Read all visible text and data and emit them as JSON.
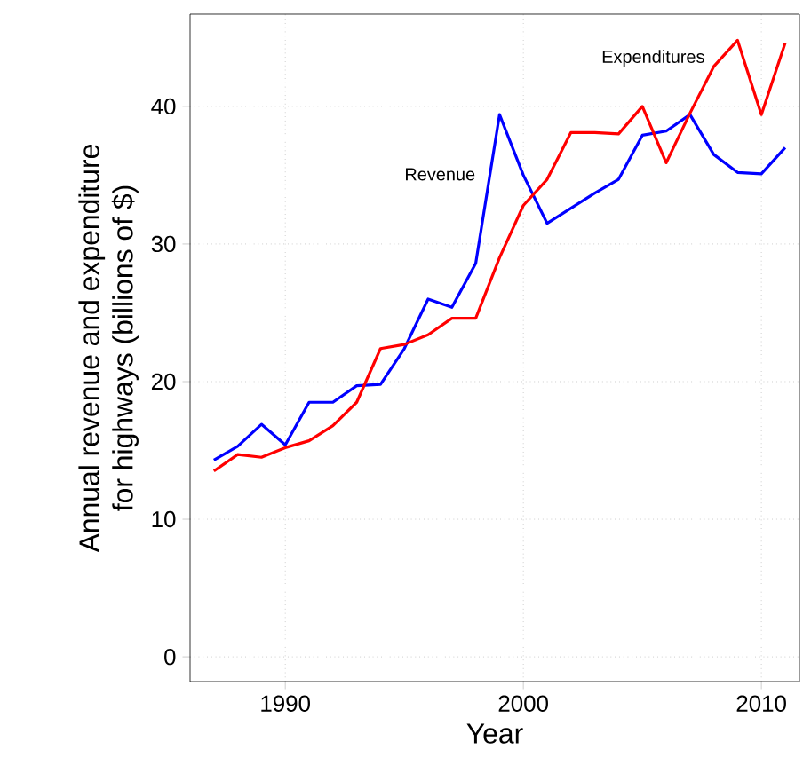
{
  "chart_data": {
    "type": "line",
    "xlabel": "Year",
    "ylabel": "Annual revenue and expenditure\nfor highways (billions of $)",
    "x": [
      1987,
      1988,
      1989,
      1990,
      1991,
      1992,
      1993,
      1994,
      1995,
      1996,
      1997,
      1998,
      1999,
      2000,
      2001,
      2002,
      2003,
      2004,
      2005,
      2006,
      2007,
      2008,
      2009,
      2010,
      2011
    ],
    "series": [
      {
        "name": "Revenue",
        "color": "#0000ff",
        "values": [
          14.3,
          15.3,
          16.9,
          15.4,
          18.5,
          18.5,
          19.7,
          19.8,
          22.4,
          26.0,
          25.4,
          28.6,
          39.4,
          35.0,
          31.5,
          32.6,
          33.7,
          34.7,
          37.9,
          38.2,
          39.4,
          36.5,
          35.2,
          35.1,
          37.0
        ]
      },
      {
        "name": "Expenditures",
        "color": "#ff0000",
        "values": [
          13.5,
          14.7,
          14.5,
          15.2,
          15.7,
          16.8,
          18.5,
          22.4,
          22.7,
          23.4,
          24.6,
          24.6,
          29.0,
          32.8,
          34.7,
          38.1,
          38.1,
          38.0,
          40.0,
          35.9,
          39.5,
          42.9,
          44.8,
          39.4,
          44.6
        ]
      }
    ],
    "xlim": [
      1986,
      2011.6
    ],
    "ylim": [
      -1.8,
      46.7
    ],
    "xticks": [
      1990,
      2000,
      2010
    ],
    "yticks": [
      0,
      10,
      20,
      30,
      40
    ],
    "grid": true,
    "marker": "none",
    "line_style": "solid"
  }
}
